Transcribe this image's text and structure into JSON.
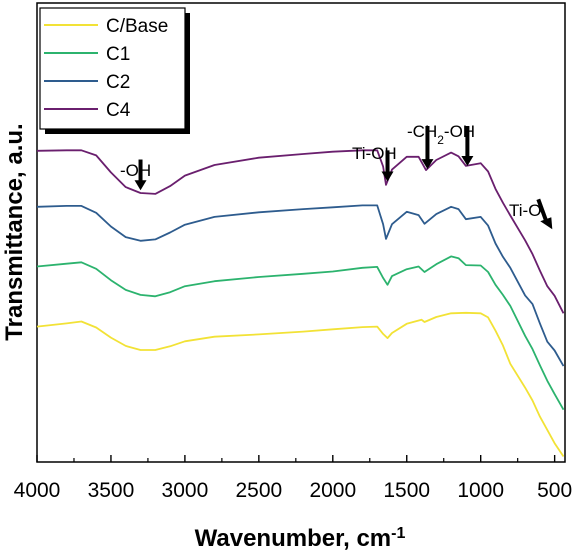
{
  "chart_data": {
    "type": "line",
    "title": "",
    "xlabel": "Wavenumber, cm",
    "xlabel_sup": "-1",
    "ylabel": "Transmittance, a.u.",
    "xlim": [
      4000,
      430
    ],
    "ylim": [
      0,
      100
    ],
    "x_reversed": true,
    "x_ticks": [
      4000,
      3500,
      3000,
      2500,
      2000,
      1500,
      1000,
      500
    ],
    "y_ticks_shown": false,
    "grid": false,
    "legend_position": "top-left",
    "series": [
      {
        "name": "C/Base",
        "color": "#f2e236",
        "points": [
          [
            4000,
            29.5
          ],
          [
            3800,
            30.2
          ],
          [
            3700,
            30.6
          ],
          [
            3600,
            29.3
          ],
          [
            3500,
            27.1
          ],
          [
            3400,
            25.3
          ],
          [
            3300,
            24.4
          ],
          [
            3200,
            24.4
          ],
          [
            3100,
            25.2
          ],
          [
            3000,
            26.3
          ],
          [
            2800,
            27.3
          ],
          [
            2500,
            27.8
          ],
          [
            2200,
            28.4
          ],
          [
            2000,
            28.9
          ],
          [
            1800,
            29.4
          ],
          [
            1700,
            29.5
          ],
          [
            1660,
            27.9
          ],
          [
            1630,
            27.0
          ],
          [
            1600,
            28.1
          ],
          [
            1500,
            30.1
          ],
          [
            1400,
            31.0
          ],
          [
            1380,
            30.5
          ],
          [
            1300,
            31.6
          ],
          [
            1200,
            32.4
          ],
          [
            1100,
            32.5
          ],
          [
            1000,
            32.4
          ],
          [
            950,
            31.5
          ],
          [
            900,
            28.6
          ],
          [
            850,
            25.4
          ],
          [
            800,
            21.4
          ],
          [
            700,
            16.2
          ],
          [
            650,
            13.4
          ],
          [
            600,
            9.9
          ],
          [
            550,
            7.0
          ],
          [
            500,
            4.1
          ],
          [
            440,
            1.2
          ]
        ]
      },
      {
        "name": "C1",
        "color": "#2cb36e",
        "points": [
          [
            4000,
            42.6
          ],
          [
            3800,
            43.2
          ],
          [
            3700,
            43.5
          ],
          [
            3600,
            42.1
          ],
          [
            3500,
            39.6
          ],
          [
            3400,
            37.5
          ],
          [
            3300,
            36.4
          ],
          [
            3200,
            36.1
          ],
          [
            3100,
            37.0
          ],
          [
            3000,
            38.3
          ],
          [
            2800,
            39.4
          ],
          [
            2500,
            40.3
          ],
          [
            2200,
            41.0
          ],
          [
            2000,
            41.5
          ],
          [
            1800,
            42.3
          ],
          [
            1700,
            42.5
          ],
          [
            1660,
            40.1
          ],
          [
            1630,
            38.6
          ],
          [
            1600,
            40.5
          ],
          [
            1500,
            42.0
          ],
          [
            1420,
            42.6
          ],
          [
            1380,
            41.4
          ],
          [
            1300,
            43.1
          ],
          [
            1200,
            44.8
          ],
          [
            1150,
            44.4
          ],
          [
            1100,
            42.9
          ],
          [
            1000,
            42.8
          ],
          [
            950,
            41.4
          ],
          [
            900,
            38.6
          ],
          [
            850,
            36.4
          ],
          [
            800,
            34.0
          ],
          [
            700,
            27.5
          ],
          [
            650,
            24.6
          ],
          [
            600,
            21.1
          ],
          [
            550,
            17.7
          ],
          [
            500,
            14.8
          ],
          [
            440,
            11.4
          ]
        ]
      },
      {
        "name": "C2",
        "color": "#2e5c8e",
        "points": [
          [
            4000,
            55.6
          ],
          [
            3800,
            55.8
          ],
          [
            3700,
            55.8
          ],
          [
            3600,
            54.3
          ],
          [
            3500,
            51.3
          ],
          [
            3400,
            49.0
          ],
          [
            3300,
            48.2
          ],
          [
            3200,
            48.5
          ],
          [
            3100,
            50.0
          ],
          [
            3000,
            51.7
          ],
          [
            2800,
            53.4
          ],
          [
            2500,
            54.4
          ],
          [
            2200,
            55.1
          ],
          [
            2000,
            55.5
          ],
          [
            1800,
            55.9
          ],
          [
            1700,
            55.9
          ],
          [
            1660,
            51.8
          ],
          [
            1640,
            48.6
          ],
          [
            1600,
            51.8
          ],
          [
            1500,
            54.5
          ],
          [
            1420,
            53.8
          ],
          [
            1380,
            51.9
          ],
          [
            1300,
            54.0
          ],
          [
            1200,
            55.6
          ],
          [
            1150,
            55.1
          ],
          [
            1100,
            52.9
          ],
          [
            1000,
            53.4
          ],
          [
            950,
            51.5
          ],
          [
            900,
            47.6
          ],
          [
            850,
            44.7
          ],
          [
            800,
            42.3
          ],
          [
            700,
            36.3
          ],
          [
            650,
            34.4
          ],
          [
            600,
            30.2
          ],
          [
            550,
            26.2
          ],
          [
            500,
            24.3
          ],
          [
            440,
            20.9
          ]
        ]
      },
      {
        "name": "C4",
        "color": "#6a1f6e",
        "points": [
          [
            4000,
            67.8
          ],
          [
            3800,
            67.9
          ],
          [
            3700,
            67.9
          ],
          [
            3600,
            66.8
          ],
          [
            3500,
            63.1
          ],
          [
            3400,
            59.9
          ],
          [
            3300,
            58.6
          ],
          [
            3200,
            58.4
          ],
          [
            3100,
            60.1
          ],
          [
            3000,
            62.4
          ],
          [
            2800,
            64.7
          ],
          [
            2500,
            66.3
          ],
          [
            2200,
            67.1
          ],
          [
            2000,
            67.6
          ],
          [
            1800,
            67.9
          ],
          [
            1700,
            67.9
          ],
          [
            1660,
            64.4
          ],
          [
            1640,
            60.4
          ],
          [
            1600,
            63.7
          ],
          [
            1500,
            66.5
          ],
          [
            1420,
            66.5
          ],
          [
            1370,
            63.6
          ],
          [
            1300,
            65.8
          ],
          [
            1200,
            67.4
          ],
          [
            1150,
            66.6
          ],
          [
            1100,
            64.5
          ],
          [
            1000,
            65.1
          ],
          [
            950,
            63.3
          ],
          [
            900,
            59.5
          ],
          [
            850,
            56.5
          ],
          [
            800,
            53.7
          ],
          [
            700,
            48.3
          ],
          [
            650,
            45.3
          ],
          [
            600,
            41.7
          ],
          [
            550,
            38.3
          ],
          [
            500,
            36.2
          ],
          [
            440,
            32.4
          ]
        ]
      }
    ],
    "annotations": [
      {
        "label": "-OH",
        "x": 3300,
        "arrow_tip_y": 59.2,
        "arrow_top_y": 65.9
      },
      {
        "label": "Ti-OH",
        "x": 1630,
        "arrow_tip_y": 61.1,
        "arrow_top_y": 67.9
      },
      {
        "label": "-CH",
        "sub": "2",
        "label_tail": "-OH",
        "x": 1360,
        "arrow_tip_y": 63.8,
        "arrow_top_y": 73.2
      },
      {
        "label_tail_offset": 0,
        "x": 1090,
        "arrow_tip_y": 64.5,
        "arrow_top_y": 73.2
      },
      {
        "label": "Ti-O",
        "x": 570,
        "arrow_tip_y": 50.7,
        "arrow_top_y": 57.4
      }
    ]
  }
}
